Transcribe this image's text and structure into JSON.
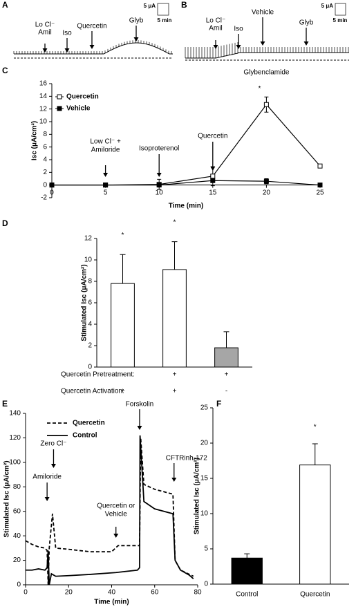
{
  "chart_data": [
    {
      "panel": "A",
      "type": "trace",
      "annotations": [
        {
          "lines": [
            "Lo Cl⁻",
            "Amil"
          ]
        },
        {
          "lines": [
            "Iso"
          ]
        },
        {
          "lines": [
            "Quercetin"
          ]
        },
        {
          "lines": [
            "Glyb"
          ]
        }
      ],
      "scale_bar": [
        "5 μA",
        "5 min"
      ]
    },
    {
      "panel": "B",
      "type": "trace",
      "annotations": [
        {
          "lines": [
            "Lo Cl⁻",
            "Amil"
          ]
        },
        {
          "lines": [
            "Iso"
          ]
        },
        {
          "lines": [
            "Vehicle"
          ]
        },
        {
          "lines": [
            "Glyb"
          ]
        }
      ],
      "scale_bar": [
        "5 μA",
        "5 min"
      ]
    },
    {
      "panel": "C",
      "type": "line",
      "ylabel": "Isc (μA/cm²)",
      "xlabel": "Time (min)",
      "x": [
        0,
        5,
        10,
        15,
        20,
        25
      ],
      "xlim": [
        0,
        25
      ],
      "xticks": [
        0,
        5,
        10,
        15,
        20,
        25
      ],
      "ylim": [
        -2,
        16
      ],
      "yticks": [
        -2,
        0,
        2,
        4,
        6,
        8,
        10,
        12,
        14,
        16
      ],
      "series": [
        {
          "name": "Quercetin",
          "color": "#000000",
          "marker": "open-square",
          "values": [
            0,
            0,
            0.1,
            1.4,
            12.7,
            3
          ],
          "errors": [
            0,
            0,
            0.8,
            1.5,
            1.2,
            0
          ]
        },
        {
          "name": "Vehicle",
          "color": "#000000",
          "marker": "filled-square",
          "values": [
            0,
            0,
            0,
            0.7,
            0.6,
            0
          ],
          "errors": [
            0,
            0,
            0,
            0,
            0.4,
            0
          ]
        }
      ],
      "legend": "upper left",
      "annotations": [
        {
          "lines": [
            "Low Cl⁻ +",
            "Amiloride"
          ],
          "x": 5
        },
        {
          "lines": [
            "Isoproterenol"
          ],
          "x": 10
        },
        {
          "lines": [
            "Quercetin"
          ],
          "x": 15
        },
        {
          "lines": [
            "Glybenclamide"
          ],
          "x": 20
        }
      ],
      "significance": [
        {
          "label": "*",
          "series": 0,
          "index": 4
        }
      ]
    },
    {
      "panel": "D",
      "type": "bar",
      "ylabel": "Stimulated Isc (μA/cm²)",
      "values": [
        7.8,
        9.1,
        1.8
      ],
      "errors": [
        2.7,
        2.6,
        1.5
      ],
      "colors": [
        "#ffffff",
        "#ffffff",
        "#a6a6a6"
      ],
      "ylim": [
        0,
        12
      ],
      "yticks": [
        0,
        2,
        4,
        6,
        8,
        10,
        12
      ],
      "rows": [
        {
          "label": "Quercetin Pretreatment:",
          "values": [
            "-",
            "+",
            "+"
          ]
        },
        {
          "label": "Quercetin Activation:",
          "values": [
            "+",
            "+",
            "-"
          ]
        }
      ],
      "significance": [
        {
          "label": "*",
          "index": 0
        },
        {
          "label": "*",
          "index": 1
        }
      ]
    },
    {
      "panel": "E",
      "type": "line",
      "ylabel": "Stimulated Isc (μA/cm²)",
      "xlabel": "Time (min)",
      "xlim": [
        0,
        80
      ],
      "xticks": [
        0,
        20,
        40,
        60,
        80
      ],
      "ylim": [
        0,
        140
      ],
      "yticks": [
        0,
        20,
        40,
        60,
        80,
        100,
        120,
        140
      ],
      "series": [
        {
          "name": "Quercetin",
          "color": "#000000",
          "style": "dashed",
          "x": [
            0,
            3,
            6,
            9,
            10,
            10.5,
            11,
            12.5,
            14,
            20,
            30,
            40,
            43,
            50,
            53,
            53.5,
            55,
            60,
            68.5,
            69.5,
            72,
            78
          ],
          "values": [
            36,
            33,
            31,
            30,
            28,
            0,
            30,
            58,
            30,
            29,
            27,
            27,
            32,
            32,
            32,
            120,
            82,
            78,
            74,
            20,
            12,
            7
          ]
        },
        {
          "name": "Control",
          "color": "#000000",
          "style": "solid",
          "x": [
            0,
            3,
            6,
            9,
            10,
            10.5,
            11,
            12,
            14,
            20,
            30,
            42,
            52,
            53,
            53.2,
            55,
            60,
            68.5,
            69.5,
            72,
            76,
            78
          ],
          "values": [
            12,
            12,
            13,
            12,
            14,
            28,
            0,
            9,
            7,
            7.5,
            8.5,
            10,
            12,
            14,
            122,
            68,
            62,
            58,
            20,
            12,
            8,
            5
          ]
        }
      ],
      "legend": "upper left",
      "annotations": [
        {
          "lines": [
            "Amiloride"
          ],
          "x": 10
        },
        {
          "lines": [
            "Zero Cl⁻"
          ],
          "x": 13
        },
        {
          "lines": [
            "Quercetin or",
            "Vehicle"
          ],
          "x": 42
        },
        {
          "lines": [
            "Forskolin"
          ],
          "x": 53
        },
        {
          "lines": [
            "CFTRinh-172"
          ],
          "x": 69
        }
      ]
    },
    {
      "panel": "F",
      "type": "bar",
      "ylabel": "Stimulated Isc (μA/cm²)",
      "categories": [
        "Control",
        "Quercetin"
      ],
      "values": [
        3.7,
        16.9
      ],
      "errors": [
        0.6,
        3
      ],
      "colors": [
        "#000000",
        "#ffffff"
      ],
      "ylim": [
        0,
        25
      ],
      "yticks": [
        0,
        5,
        10,
        15,
        20,
        25
      ],
      "significance": [
        {
          "label": "*",
          "index": 1
        }
      ]
    }
  ]
}
